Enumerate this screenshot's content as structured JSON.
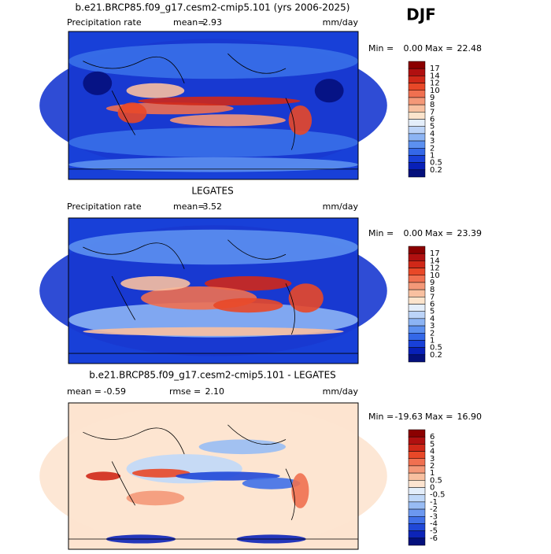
{
  "header": {
    "title": "DJF"
  },
  "panels": [
    {
      "title": "b.e21.BRCP85.f09_g17.cesm2-cmip5.101 (yrs 2006-2025)",
      "left_label": "Precipitation rate",
      "mid_label": "mean=",
      "mid_value": "2.93",
      "units": "mm/day",
      "min_label": "Min =",
      "min_value": "0.00",
      "max_label": "Max =",
      "max_value": "22.48",
      "colorbar": {
        "labels": [
          "17",
          "14",
          "12",
          "10",
          "9",
          "8",
          "7",
          "6",
          "5",
          "4",
          "3",
          "2",
          "1",
          "0.5",
          "0.2"
        ],
        "colors": [
          "#8b0000",
          "#b01010",
          "#d02818",
          "#e84828",
          "#f07050",
          "#f49878",
          "#f8c0a0",
          "#fce4cc",
          "#e4eefa",
          "#bcd4f8",
          "#8cb4f4",
          "#5c90f0",
          "#3468e8",
          "#1840d8",
          "#0820b8",
          "#04107c"
        ]
      }
    },
    {
      "title": "LEGATES",
      "left_label": "Precipitation rate",
      "mid_label": "mean=",
      "mid_value": "3.52",
      "units": "mm/day",
      "min_label": "Min =",
      "min_value": "0.00",
      "max_label": "Max =",
      "max_value": "23.39",
      "colorbar": {
        "labels": [
          "17",
          "14",
          "12",
          "10",
          "9",
          "8",
          "7",
          "6",
          "5",
          "4",
          "3",
          "2",
          "1",
          "0.5",
          "0.2"
        ],
        "colors": [
          "#8b0000",
          "#b01010",
          "#d02818",
          "#e84828",
          "#f07050",
          "#f49878",
          "#f8c0a0",
          "#fce4cc",
          "#e4eefa",
          "#bcd4f8",
          "#8cb4f4",
          "#5c90f0",
          "#3468e8",
          "#1840d8",
          "#0820b8",
          "#04107c"
        ]
      }
    },
    {
      "title": "b.e21.BRCP85.f09_g17.cesm2-cmip5.101 - LEGATES",
      "left_label": "mean =",
      "left_value": "-0.59",
      "mid_label": "rmse =",
      "mid_value": "2.10",
      "units": "mm/day",
      "min_label": "Min =",
      "min_value": "-19.63",
      "max_label": "Max =",
      "max_value": "16.90",
      "colorbar": {
        "labels": [
          "6",
          "5",
          "4",
          "3",
          "2",
          "1",
          "0.5",
          "0",
          "-0.5",
          "-1",
          "-2",
          "-3",
          "-4",
          "-5",
          "-6"
        ],
        "colors": [
          "#8b0000",
          "#b01010",
          "#d02818",
          "#e84828",
          "#f07050",
          "#f49878",
          "#f8c0a0",
          "#fde4d0",
          "#e4eefa",
          "#c0d8f8",
          "#98bcf4",
          "#6c98f0",
          "#4070e8",
          "#2048d8",
          "#0c24b8",
          "#04107c"
        ]
      }
    }
  ]
}
